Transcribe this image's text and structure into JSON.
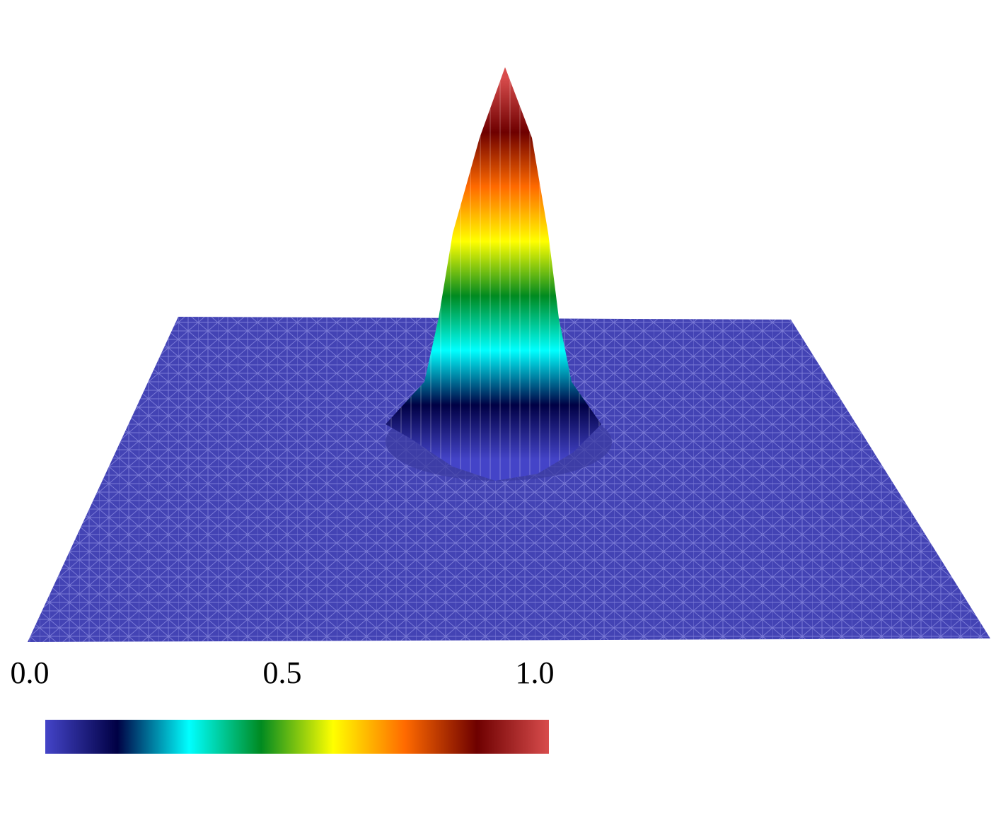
{
  "chart_data": {
    "type": "surface",
    "colorbar": {
      "lim": [
        0,
        1
      ],
      "ticks": [
        {
          "value": 0,
          "label": "0.0"
        },
        {
          "value": 0.5,
          "label": "0.5"
        },
        {
          "value": 1,
          "label": "1.0"
        }
      ],
      "colormap": [
        "#4444c8",
        "#000044",
        "#00ffff",
        "#008a20",
        "#ffff00",
        "#ff6a00",
        "#6e0000",
        "#d84c4c"
      ]
    }
  }
}
